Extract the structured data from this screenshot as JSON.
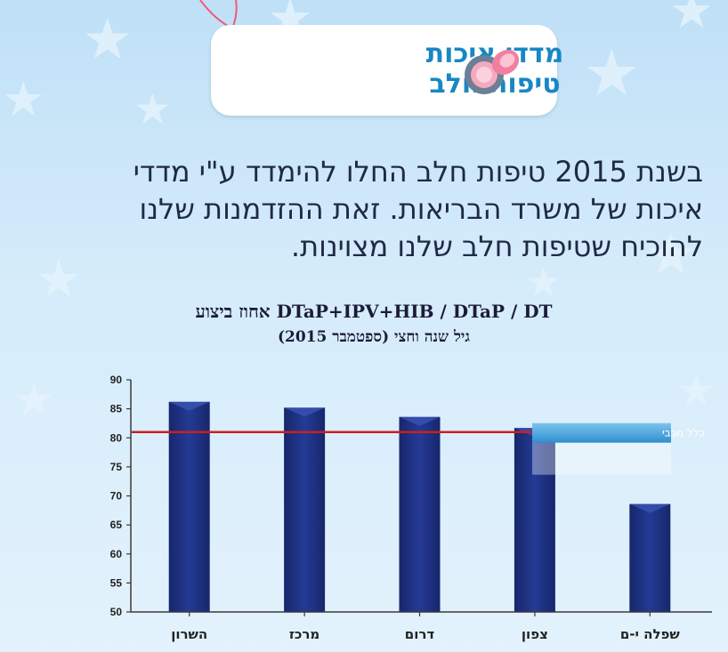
{
  "header": {
    "title_line1": "מדדי איכות",
    "title_line2": "טיפות חלב"
  },
  "intro": {
    "line1": "בשנת 2015 טיפות חלב החלו להימדד ע\"י מדדי",
    "line2": "איכות של משרד הבריאות. זאת ההזדמנות שלנו",
    "line3": "להוכיח שטיפות חלב שלנו מצוינות."
  },
  "chart_data": {
    "type": "bar",
    "title": "אחוז ביצוע DTaP+IPV+HIB / DTaP / DT",
    "subtitle": "גיל שנה וחצי (ספטמבר 2015)",
    "categories": [
      "השרון",
      "מרכז",
      "דרום",
      "צפון",
      "שפלה י-ם"
    ],
    "values": [
      86.2,
      85.2,
      83.6,
      81.7,
      68.6
    ],
    "ylim": [
      50,
      90
    ],
    "yticks": [
      50,
      55,
      60,
      65,
      70,
      75,
      80,
      85,
      90
    ],
    "grid": false,
    "reference_line": {
      "value": 81,
      "label": "כלל מכבי",
      "color": "#cc1e1e"
    },
    "bar_color": "#1b2d7a"
  }
}
